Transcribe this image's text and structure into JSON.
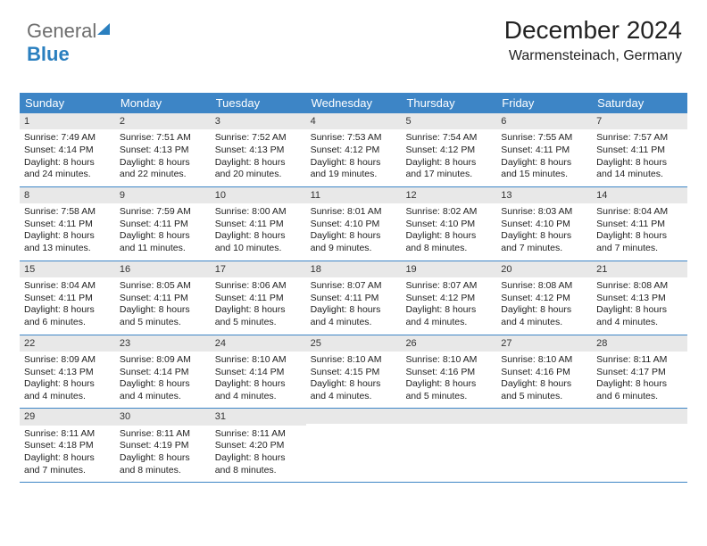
{
  "logo": {
    "word1": "General",
    "word2": "Blue"
  },
  "title": "December 2024",
  "location": "Warmensteinach, Germany",
  "colors": {
    "header_bg": "#3d85c6",
    "header_text": "#ffffff",
    "daynum_bg": "#e8e8e8",
    "week_border": "#3d85c6",
    "logo_blue": "#2a7fbf",
    "logo_gray": "#6e6e6e"
  },
  "dayNames": [
    "Sunday",
    "Monday",
    "Tuesday",
    "Wednesday",
    "Thursday",
    "Friday",
    "Saturday"
  ],
  "weeks": [
    [
      {
        "n": "1",
        "sr": "Sunrise: 7:49 AM",
        "ss": "Sunset: 4:14 PM",
        "d1": "Daylight: 8 hours",
        "d2": "and 24 minutes."
      },
      {
        "n": "2",
        "sr": "Sunrise: 7:51 AM",
        "ss": "Sunset: 4:13 PM",
        "d1": "Daylight: 8 hours",
        "d2": "and 22 minutes."
      },
      {
        "n": "3",
        "sr": "Sunrise: 7:52 AM",
        "ss": "Sunset: 4:13 PM",
        "d1": "Daylight: 8 hours",
        "d2": "and 20 minutes."
      },
      {
        "n": "4",
        "sr": "Sunrise: 7:53 AM",
        "ss": "Sunset: 4:12 PM",
        "d1": "Daylight: 8 hours",
        "d2": "and 19 minutes."
      },
      {
        "n": "5",
        "sr": "Sunrise: 7:54 AM",
        "ss": "Sunset: 4:12 PM",
        "d1": "Daylight: 8 hours",
        "d2": "and 17 minutes."
      },
      {
        "n": "6",
        "sr": "Sunrise: 7:55 AM",
        "ss": "Sunset: 4:11 PM",
        "d1": "Daylight: 8 hours",
        "d2": "and 15 minutes."
      },
      {
        "n": "7",
        "sr": "Sunrise: 7:57 AM",
        "ss": "Sunset: 4:11 PM",
        "d1": "Daylight: 8 hours",
        "d2": "and 14 minutes."
      }
    ],
    [
      {
        "n": "8",
        "sr": "Sunrise: 7:58 AM",
        "ss": "Sunset: 4:11 PM",
        "d1": "Daylight: 8 hours",
        "d2": "and 13 minutes."
      },
      {
        "n": "9",
        "sr": "Sunrise: 7:59 AM",
        "ss": "Sunset: 4:11 PM",
        "d1": "Daylight: 8 hours",
        "d2": "and 11 minutes."
      },
      {
        "n": "10",
        "sr": "Sunrise: 8:00 AM",
        "ss": "Sunset: 4:11 PM",
        "d1": "Daylight: 8 hours",
        "d2": "and 10 minutes."
      },
      {
        "n": "11",
        "sr": "Sunrise: 8:01 AM",
        "ss": "Sunset: 4:10 PM",
        "d1": "Daylight: 8 hours",
        "d2": "and 9 minutes."
      },
      {
        "n": "12",
        "sr": "Sunrise: 8:02 AM",
        "ss": "Sunset: 4:10 PM",
        "d1": "Daylight: 8 hours",
        "d2": "and 8 minutes."
      },
      {
        "n": "13",
        "sr": "Sunrise: 8:03 AM",
        "ss": "Sunset: 4:10 PM",
        "d1": "Daylight: 8 hours",
        "d2": "and 7 minutes."
      },
      {
        "n": "14",
        "sr": "Sunrise: 8:04 AM",
        "ss": "Sunset: 4:11 PM",
        "d1": "Daylight: 8 hours",
        "d2": "and 7 minutes."
      }
    ],
    [
      {
        "n": "15",
        "sr": "Sunrise: 8:04 AM",
        "ss": "Sunset: 4:11 PM",
        "d1": "Daylight: 8 hours",
        "d2": "and 6 minutes."
      },
      {
        "n": "16",
        "sr": "Sunrise: 8:05 AM",
        "ss": "Sunset: 4:11 PM",
        "d1": "Daylight: 8 hours",
        "d2": "and 5 minutes."
      },
      {
        "n": "17",
        "sr": "Sunrise: 8:06 AM",
        "ss": "Sunset: 4:11 PM",
        "d1": "Daylight: 8 hours",
        "d2": "and 5 minutes."
      },
      {
        "n": "18",
        "sr": "Sunrise: 8:07 AM",
        "ss": "Sunset: 4:11 PM",
        "d1": "Daylight: 8 hours",
        "d2": "and 4 minutes."
      },
      {
        "n": "19",
        "sr": "Sunrise: 8:07 AM",
        "ss": "Sunset: 4:12 PM",
        "d1": "Daylight: 8 hours",
        "d2": "and 4 minutes."
      },
      {
        "n": "20",
        "sr": "Sunrise: 8:08 AM",
        "ss": "Sunset: 4:12 PM",
        "d1": "Daylight: 8 hours",
        "d2": "and 4 minutes."
      },
      {
        "n": "21",
        "sr": "Sunrise: 8:08 AM",
        "ss": "Sunset: 4:13 PM",
        "d1": "Daylight: 8 hours",
        "d2": "and 4 minutes."
      }
    ],
    [
      {
        "n": "22",
        "sr": "Sunrise: 8:09 AM",
        "ss": "Sunset: 4:13 PM",
        "d1": "Daylight: 8 hours",
        "d2": "and 4 minutes."
      },
      {
        "n": "23",
        "sr": "Sunrise: 8:09 AM",
        "ss": "Sunset: 4:14 PM",
        "d1": "Daylight: 8 hours",
        "d2": "and 4 minutes."
      },
      {
        "n": "24",
        "sr": "Sunrise: 8:10 AM",
        "ss": "Sunset: 4:14 PM",
        "d1": "Daylight: 8 hours",
        "d2": "and 4 minutes."
      },
      {
        "n": "25",
        "sr": "Sunrise: 8:10 AM",
        "ss": "Sunset: 4:15 PM",
        "d1": "Daylight: 8 hours",
        "d2": "and 4 minutes."
      },
      {
        "n": "26",
        "sr": "Sunrise: 8:10 AM",
        "ss": "Sunset: 4:16 PM",
        "d1": "Daylight: 8 hours",
        "d2": "and 5 minutes."
      },
      {
        "n": "27",
        "sr": "Sunrise: 8:10 AM",
        "ss": "Sunset: 4:16 PM",
        "d1": "Daylight: 8 hours",
        "d2": "and 5 minutes."
      },
      {
        "n": "28",
        "sr": "Sunrise: 8:11 AM",
        "ss": "Sunset: 4:17 PM",
        "d1": "Daylight: 8 hours",
        "d2": "and 6 minutes."
      }
    ],
    [
      {
        "n": "29",
        "sr": "Sunrise: 8:11 AM",
        "ss": "Sunset: 4:18 PM",
        "d1": "Daylight: 8 hours",
        "d2": "and 7 minutes."
      },
      {
        "n": "30",
        "sr": "Sunrise: 8:11 AM",
        "ss": "Sunset: 4:19 PM",
        "d1": "Daylight: 8 hours",
        "d2": "and 8 minutes."
      },
      {
        "n": "31",
        "sr": "Sunrise: 8:11 AM",
        "ss": "Sunset: 4:20 PM",
        "d1": "Daylight: 8 hours",
        "d2": "and 8 minutes."
      },
      {
        "empty": true
      },
      {
        "empty": true
      },
      {
        "empty": true
      },
      {
        "empty": true
      }
    ]
  ]
}
